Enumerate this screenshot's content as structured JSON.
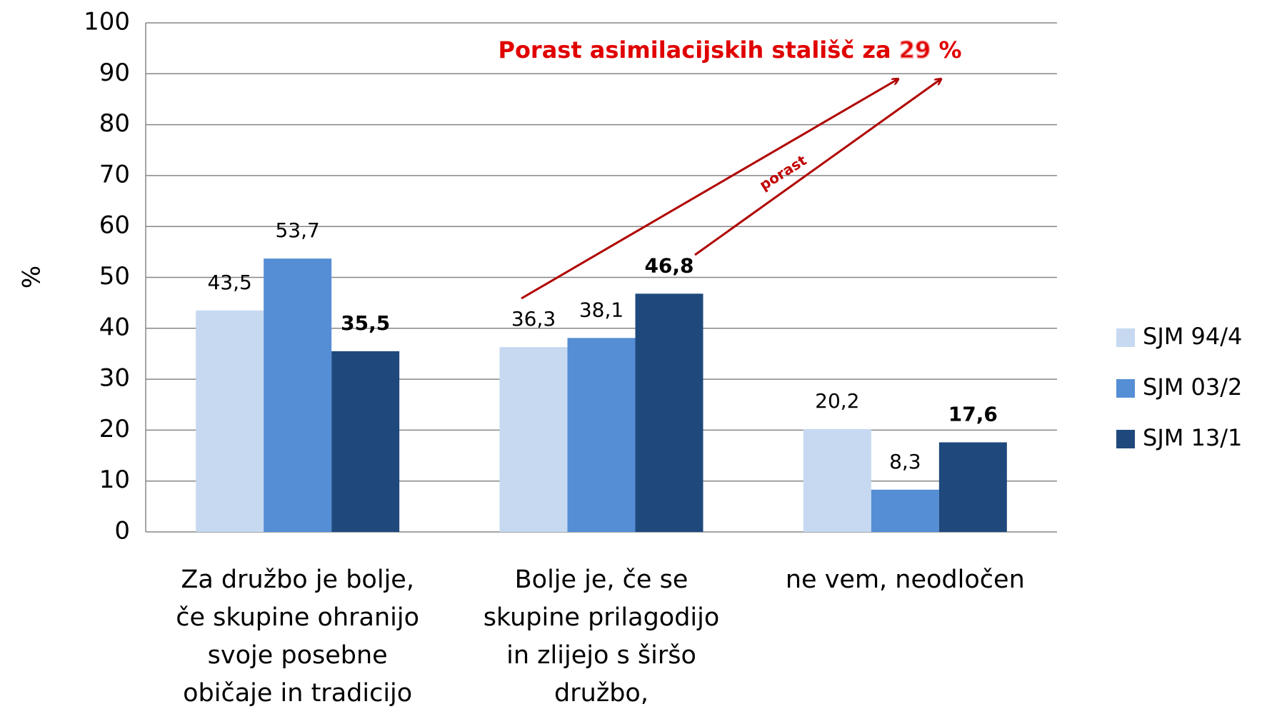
{
  "chart_data": {
    "type": "bar",
    "y_label": "%",
    "annotation": [
      "Porast asimilacijskih stališč za",
      "29",
      "%"
    ],
    "arrow_label": "porast",
    "categories": [
      "Za družbo je bolje,\nče skupine ohranijo\nsvoje posebne\nobičaje in tradicijo",
      "Bolje je, če se\nskupine prilagodijo\nin zlijejo s širšo\ndružbo,",
      "ne vem, neodločen"
    ],
    "series": [
      {
        "name": "SJM 94/4",
        "color": "#c6d9f1",
        "values": [
          43.5,
          36.3,
          20.2
        ],
        "value_labels": [
          "43,5",
          "36,3",
          "20,2"
        ]
      },
      {
        "name": "SJM 03/2",
        "color": "#558ed5",
        "values": [
          53.7,
          38.1,
          8.3
        ],
        "value_labels": [
          "53,7",
          "38,1",
          "8,3"
        ]
      },
      {
        "name": "SJM 13/1",
        "color": "#1f497d",
        "values": [
          35.5,
          46.8,
          17.6
        ],
        "value_labels": [
          "35,5",
          "46,8",
          "17,6"
        ]
      }
    ],
    "ylim": [
      0,
      100
    ],
    "yticks": [
      0,
      10,
      20,
      30,
      40,
      50,
      60,
      70,
      80,
      90,
      100
    ],
    "grid": true,
    "legend": "right"
  }
}
